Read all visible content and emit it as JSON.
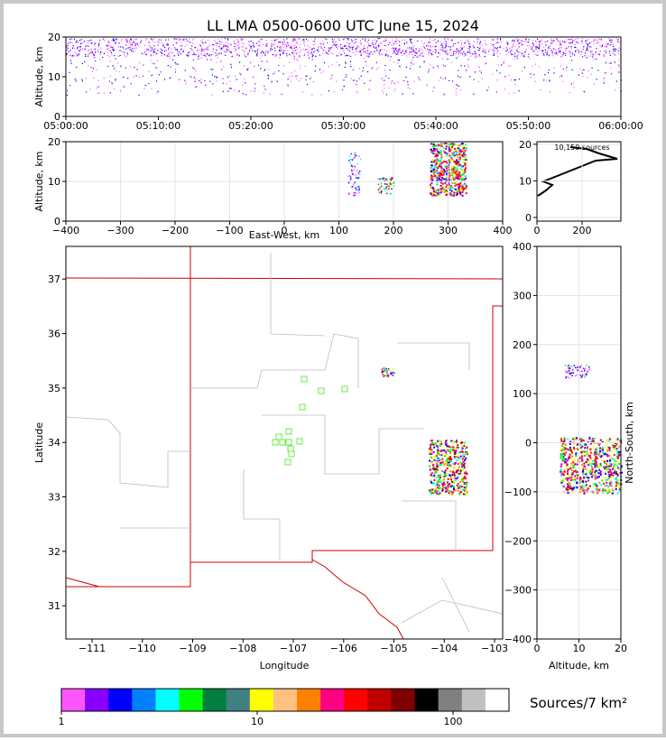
{
  "title": "LL LMA 0500-0600 UTC June 15, 2024",
  "chart_data": [
    {
      "type": "scatter",
      "ylabel": "Altitude, km",
      "xlim": [
        "05:00:00",
        "06:00:00"
      ],
      "xticks": [
        "05:00:00",
        "05:10:00",
        "05:20:00",
        "05:30:00",
        "05:40:00",
        "05:50:00",
        "06:00:00"
      ],
      "ylim": [
        0,
        20
      ],
      "yticks": [
        0,
        10,
        20
      ],
      "grid": false
    },
    {
      "type": "scatter",
      "ylabel": "Altitude, km",
      "xlabel": "East-West, km",
      "xlim": [
        -400,
        400
      ],
      "xticks": [
        {
          "value": -400,
          "label": "−400"
        },
        {
          "value": -300,
          "label": "−300"
        },
        {
          "value": -200,
          "label": "−200"
        },
        {
          "value": -100,
          "label": "−100"
        },
        0,
        100,
        200,
        300,
        400
      ],
      "ylim": [
        0,
        20
      ],
      "yticks": [
        0,
        10,
        20
      ],
      "grid": true
    },
    {
      "type": "line",
      "annotation": "10,150 sources",
      "xlim": [
        0,
        372
      ],
      "xticks": [
        0,
        200
      ],
      "ylim": [
        -1,
        20.7
      ],
      "yticks": [
        0,
        10,
        20
      ],
      "grid": true
    },
    {
      "type": "map",
      "xlabel": "Longitude",
      "ylabel": "Latitude",
      "xlim": [
        -111.52,
        -102.84
      ],
      "xticks": [
        {
          "value": -111,
          "label": "−111"
        },
        {
          "value": -110,
          "label": "−110"
        },
        {
          "value": -109,
          "label": "−109"
        },
        {
          "value": -108,
          "label": "−108"
        },
        {
          "value": -107,
          "label": "−107"
        },
        {
          "value": -106,
          "label": "−106"
        },
        {
          "value": -105,
          "label": "−105"
        },
        {
          "value": -104,
          "label": "−104"
        },
        {
          "value": -103,
          "label": "−103"
        }
      ],
      "ylim": [
        30.39,
        37.6
      ],
      "yticks": [
        31,
        32,
        33,
        34,
        35,
        36,
        37
      ],
      "grid": false
    },
    {
      "type": "scatter",
      "xlabel": "Altitude, km",
      "ylabel": "North-South, km",
      "xlim": [
        0,
        20
      ],
      "xticks": [
        0,
        10,
        20
      ],
      "ylim": [
        -400,
        400
      ],
      "yticks": [
        {
          "value": -400,
          "label": "−400"
        },
        {
          "value": -300,
          "label": "−300"
        },
        {
          "value": -200,
          "label": "−200"
        },
        {
          "value": -100,
          "label": "−100"
        },
        0,
        100,
        200,
        300,
        400
      ],
      "grid": true
    },
    {
      "type": "colorbar",
      "label": "Sources/7 km²",
      "log": true,
      "xlim": [
        1,
        193
      ],
      "xticks": [
        1,
        10,
        100
      ],
      "colors": [
        "#ff55ff",
        "#8800ff",
        "#0000ff",
        "#0080ff",
        "#00ffff",
        "#00ff00",
        "#008040",
        "#408080",
        "#ffff00",
        "#ffc080",
        "#ff8000",
        "#ff0080",
        "#ff0000",
        "#c00000",
        "#800000",
        "#000000",
        "#808080",
        "#c0c0c0",
        "#ffffff"
      ]
    }
  ]
}
